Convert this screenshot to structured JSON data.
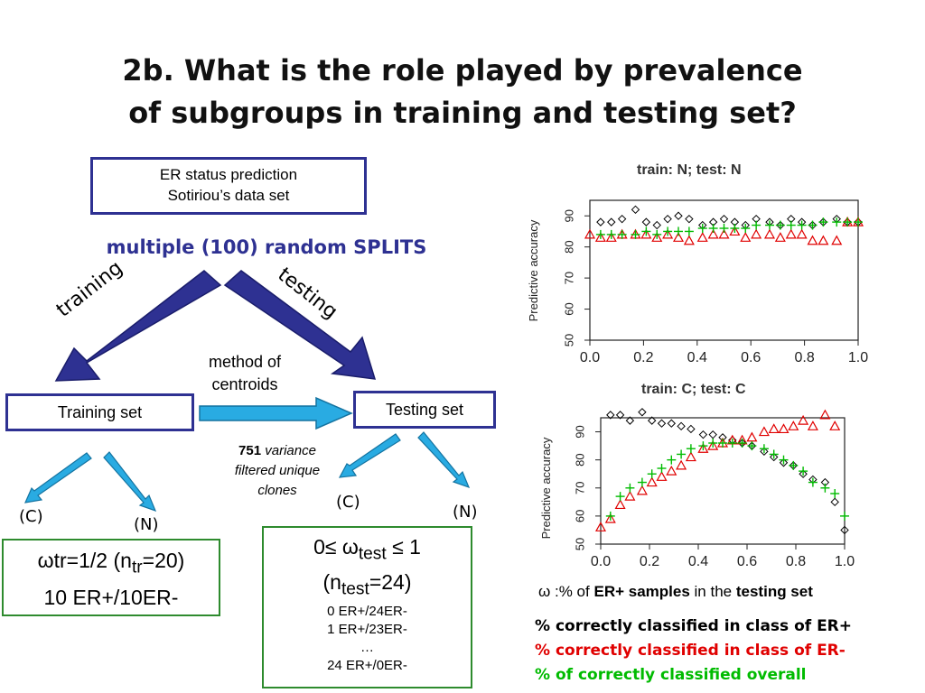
{
  "slide": {
    "title_line1": "2b. What is the role played by prevalence",
    "title_line2": "of subgroups in training and testing set?"
  },
  "diagram": {
    "er_box_line1": "ER status prediction",
    "er_box_line2": "Sotiriou’s data set",
    "splits_label": "multiple (100) random SPLITS",
    "training_label": "training",
    "testing_label": "testing",
    "method_line1": "method of",
    "method_line2": "centroids",
    "training_set": "Training set",
    "testing_set": "Testing set",
    "variance_number": "751",
    "variance_line1": "variance",
    "variance_line2": "filtered unique",
    "variance_line3": "clones",
    "c_label": "(C)",
    "n_label": "(N)",
    "train_ratio": "ωtr=1/2 (ntr=20)",
    "train_counts": "10 ER+/10ER-",
    "test_range": "0≤ ωtest ≤ 1",
    "test_n": "(ntest=24)",
    "test_list": [
      "0 ER+/24ER-",
      "1 ER+/23ER-",
      "…",
      "24 ER+/0ER-"
    ]
  },
  "annotations": {
    "omega_prefix": "ω :% of",
    "omega_bold1": "ER+ samples",
    "omega_mid": "in the",
    "omega_bold2": "testing set",
    "legend_er_plus": "% correctly classified in class of ER+",
    "legend_er_minus": "% correctly classified in class of ER-",
    "legend_overall": "% of correctly classified overall"
  },
  "colors": {
    "accent_blue": "#2e3192",
    "arrow_light": "#29abe2",
    "box_green": "#2e8b2e",
    "er_plus": "#000000",
    "er_minus": "#e00000",
    "overall": "#00bb00"
  },
  "chart_data": [
    {
      "type": "scatter",
      "title": "train: N; test: N",
      "ylabel": "Predictive accuracy",
      "xlim": [
        0,
        1
      ],
      "ylim": [
        50,
        95
      ],
      "xticks": [
        "0.0",
        "0.2",
        "0.4",
        "0.6",
        "0.8",
        "1.0"
      ],
      "yticks": [
        "50",
        "60",
        "70",
        "80",
        "90"
      ],
      "x": [
        0.0,
        0.04,
        0.08,
        0.12,
        0.17,
        0.21,
        0.25,
        0.29,
        0.33,
        0.37,
        0.42,
        0.46,
        0.5,
        0.54,
        0.58,
        0.62,
        0.67,
        0.71,
        0.75,
        0.79,
        0.83,
        0.87,
        0.92,
        0.96,
        1.0
      ],
      "series": [
        {
          "marker": "diamond",
          "color": "#000000",
          "values": [
            null,
            88,
            88,
            89,
            92,
            88,
            87,
            89,
            90,
            89,
            87,
            88,
            89,
            88,
            87,
            89,
            88,
            87,
            89,
            88,
            87,
            88,
            89,
            88,
            88
          ]
        },
        {
          "marker": "triangle",
          "color": "#e00000",
          "values": [
            84,
            83,
            83,
            84,
            84,
            84,
            83,
            84,
            83,
            82,
            83,
            84,
            84,
            85,
            83,
            84,
            84,
            83,
            84,
            84,
            82,
            82,
            82,
            88,
            88
          ]
        },
        {
          "marker": "plus",
          "color": "#00bb00",
          "values": [
            null,
            84,
            84,
            84,
            84,
            85,
            84,
            85,
            85,
            85,
            86,
            86,
            86,
            86,
            86,
            87,
            87,
            87,
            87,
            87,
            87,
            88,
            88,
            88,
            88
          ]
        }
      ]
    },
    {
      "type": "scatter",
      "title": "train: C; test: C",
      "ylabel": "Predictive accuracy",
      "xlim": [
        0,
        1
      ],
      "ylim": [
        50,
        95
      ],
      "xticks": [
        "0.0",
        "0.2",
        "0.4",
        "0.6",
        "0.8",
        "1.0"
      ],
      "yticks": [
        "50",
        "60",
        "70",
        "80",
        "90"
      ],
      "x": [
        0.0,
        0.04,
        0.08,
        0.12,
        0.17,
        0.21,
        0.25,
        0.29,
        0.33,
        0.37,
        0.42,
        0.46,
        0.5,
        0.54,
        0.58,
        0.62,
        0.67,
        0.71,
        0.75,
        0.79,
        0.83,
        0.87,
        0.92,
        0.96,
        1.0
      ],
      "series": [
        {
          "marker": "diamond",
          "color": "#000000",
          "values": [
            null,
            96,
            96,
            94,
            97,
            94,
            93,
            93,
            92,
            91,
            89,
            89,
            88,
            87,
            86,
            85,
            83,
            81,
            79,
            78,
            75,
            73,
            72,
            65,
            55
          ]
        },
        {
          "marker": "triangle",
          "color": "#e00000",
          "values": [
            56,
            59,
            64,
            67,
            69,
            72,
            74,
            76,
            78,
            81,
            84,
            85,
            86,
            87,
            87,
            88,
            90,
            91,
            91,
            92,
            94,
            92,
            96,
            92,
            null
          ]
        },
        {
          "marker": "plus",
          "color": "#00bb00",
          "values": [
            null,
            60,
            67,
            70,
            72,
            75,
            77,
            80,
            82,
            84,
            85,
            86,
            86,
            86,
            86,
            85,
            84,
            82,
            80,
            78,
            76,
            72,
            70,
            68,
            60
          ]
        }
      ]
    }
  ]
}
